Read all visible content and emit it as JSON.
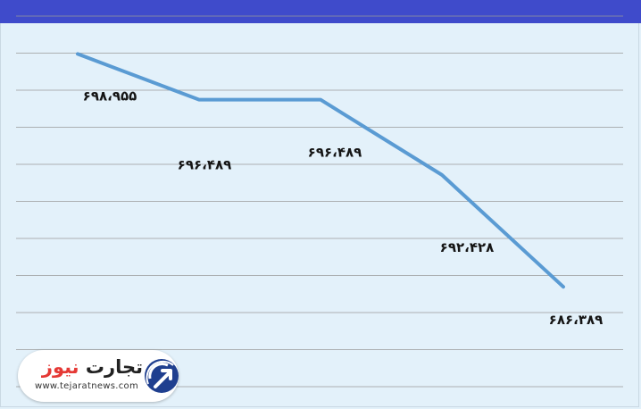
{
  "chart_data": {
    "type": "line",
    "categories": [
      "",
      "",
      "",
      "",
      ""
    ],
    "series": [
      {
        "values": [
          698955,
          696489,
          696489,
          692428,
          686389
        ],
        "color": "#5a9bd3"
      }
    ],
    "data_labels": [
      "۶۹۸،۹۵۵",
      "۶۹۶،۴۸۹",
      "۶۹۶،۴۸۹",
      "۶۹۲،۴۲۸",
      "۶۸۶،۳۸۹"
    ],
    "title": "",
    "xlabel": "",
    "ylabel": "",
    "grid": true,
    "ylim": [
      681000,
      701000
    ]
  },
  "logo": {
    "name_part1": "تجارت",
    "name_part2": "نیوز",
    "url": "www.tejaratnews.com"
  },
  "colors": {
    "header": "#3f4bcb",
    "background": "#e3f1fa",
    "line": "#5a9bd3",
    "grid": "#9a9a9a"
  }
}
